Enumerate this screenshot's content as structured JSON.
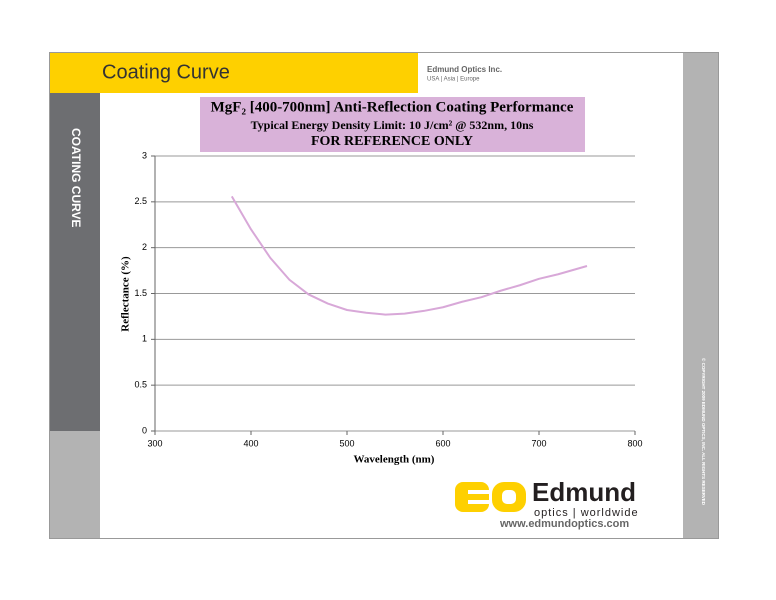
{
  "header": {
    "title": "Coating Curve",
    "company": "Edmund Optics Inc.",
    "regions": "USA | Asia | Europe"
  },
  "sidebar": {
    "label": "COATING CURVE"
  },
  "copyright": "© COPYRIGHT 2009 EDMUND OPTICS, INC. ALL RIGHTS RESERVED",
  "logo": {
    "brand": "Edmund",
    "tagline": "optics | worldwide",
    "url": "www.edmundoptics.com"
  },
  "chart_data": {
    "type": "line",
    "title": "MgF₂ [400-700nm] Anti-Reflection Coating Performance",
    "subtitle": "Typical Energy Density Limit: 10 J/cm² @ 532nm, 10ns",
    "note": "FOR REFERENCE ONLY",
    "x_label": "Wavelength (nm)",
    "y_label": "Reflectance (%)",
    "x": [
      380,
      400,
      420,
      440,
      460,
      480,
      500,
      520,
      540,
      560,
      580,
      600,
      620,
      640,
      660,
      680,
      700,
      720,
      750
    ],
    "values": [
      2.56,
      2.2,
      1.89,
      1.65,
      1.49,
      1.39,
      1.32,
      1.29,
      1.27,
      1.28,
      1.31,
      1.35,
      1.41,
      1.46,
      1.53,
      1.59,
      1.66,
      1.71,
      1.8
    ],
    "color": "#d8a8d8",
    "xlim": [
      300,
      800
    ],
    "ylim": [
      0,
      3
    ],
    "xticks": [
      300,
      400,
      500,
      600,
      700,
      800
    ],
    "yticks": [
      0,
      0.5,
      1,
      1.5,
      2,
      2.5,
      3
    ],
    "grid": true
  }
}
